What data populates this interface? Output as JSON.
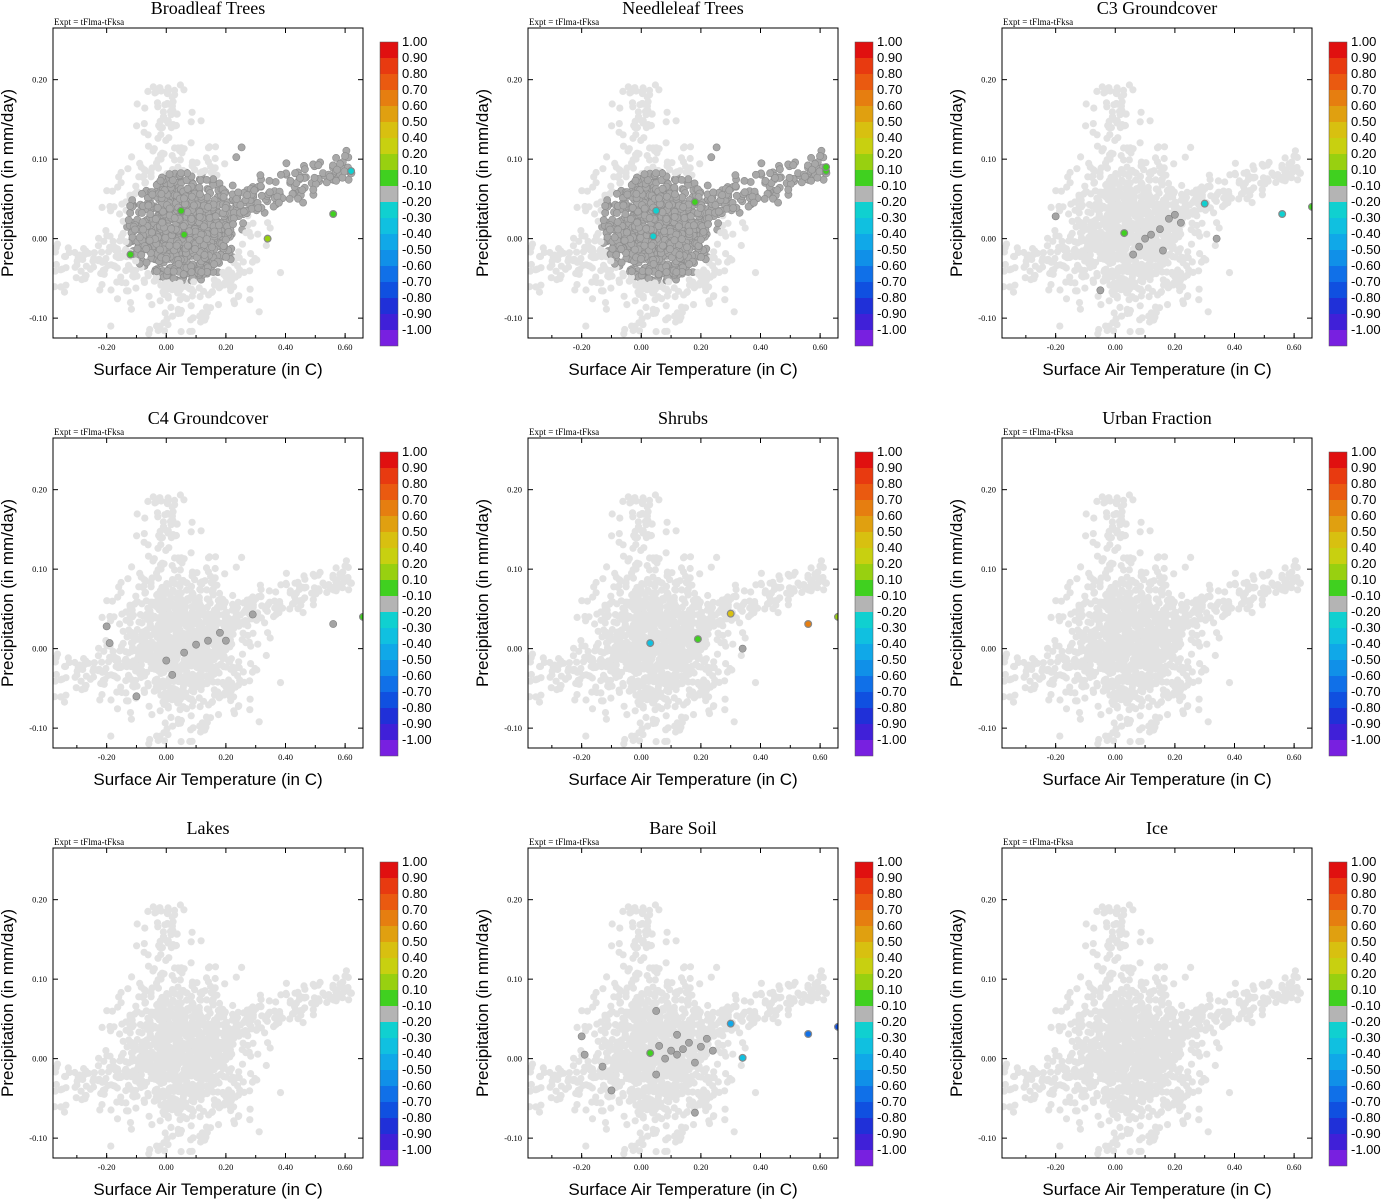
{
  "figure": {
    "expt_label": "Expt = tFlma-tFksa",
    "xlabel": "Surface Air Temperature (in C)",
    "ylabel": "Precipitation (in mm/day)",
    "xticks": [
      "-0.20",
      "0.00",
      "0.20",
      "0.40",
      "0.60"
    ],
    "yticks": [
      "-0.10",
      "0.00",
      "0.10",
      "0.20"
    ],
    "colorbar_labels": [
      "1.00",
      "0.90",
      "0.80",
      "0.70",
      "0.60",
      "0.50",
      "0.40",
      "0.20",
      "0.10",
      "-0.10",
      "-0.20",
      "-0.30",
      "-0.40",
      "-0.50",
      "-0.60",
      "-0.70",
      "-0.80",
      "-0.90",
      "-1.00"
    ],
    "colorbar_colors": [
      "#e01010",
      "#e83a10",
      "#ea5a10",
      "#e67e10",
      "#e0a010",
      "#d8c010",
      "#c8d010",
      "#98d010",
      "#40d020",
      "#b4b4b4",
      "#10d0d0",
      "#10c0e0",
      "#10a8e8",
      "#1090e8",
      "#1070e8",
      "#1050e0",
      "#2030d8",
      "#4020d8",
      "#7820e0"
    ]
  },
  "chart_data": [
    {
      "type": "scatter",
      "title": "Broadleaf Trees",
      "xlabel": "Surface Air Temperature (in C)",
      "ylabel": "Precipitation (in mm/day)",
      "xlim": [
        -0.38,
        0.66
      ],
      "ylim": [
        -0.125,
        0.265
      ],
      "active_gray_extent": "most points",
      "colored_points": [
        {
          "x": 0.05,
          "y": 0.035,
          "corr": 0.1
        },
        {
          "x": 0.06,
          "y": 0.005,
          "corr": 0.1
        },
        {
          "x": -0.12,
          "y": -0.02,
          "corr": 0.1
        },
        {
          "x": 0.34,
          "y": 0.0,
          "corr": 0.2
        },
        {
          "x": 0.56,
          "y": 0.031,
          "corr": 0.1
        },
        {
          "x": 0.62,
          "y": 0.085,
          "corr": -0.2
        }
      ]
    },
    {
      "type": "scatter",
      "title": "Needleleaf Trees",
      "xlabel": "Surface Air Temperature (in C)",
      "ylabel": "Precipitation (in mm/day)",
      "xlim": [
        -0.38,
        0.66
      ],
      "ylim": [
        -0.125,
        0.265
      ],
      "active_gray_extent": "most points",
      "colored_points": [
        {
          "x": 0.18,
          "y": 0.046,
          "corr": 0.1
        },
        {
          "x": 0.62,
          "y": 0.085,
          "corr": 0.1
        },
        {
          "x": 0.62,
          "y": 0.09,
          "corr": 0.1
        },
        {
          "x": 0.05,
          "y": 0.035,
          "corr": -0.2
        },
        {
          "x": 0.04,
          "y": 0.003,
          "corr": -0.2
        }
      ]
    },
    {
      "type": "scatter",
      "title": "C3 Groundcover",
      "xlabel": "Surface Air Temperature (in C)",
      "ylabel": "Precipitation (in mm/day)",
      "xlim": [
        -0.38,
        0.66
      ],
      "ylim": [
        -0.125,
        0.265
      ],
      "active_gray": [
        {
          "x": -0.2,
          "y": 0.028
        },
        {
          "x": 0.1,
          "y": 0.0
        },
        {
          "x": 0.15,
          "y": 0.012
        },
        {
          "x": 0.18,
          "y": 0.025
        },
        {
          "x": 0.2,
          "y": 0.03
        },
        {
          "x": 0.08,
          "y": -0.01
        },
        {
          "x": 0.12,
          "y": 0.005
        },
        {
          "x": 0.34,
          "y": 0.0
        },
        {
          "x": -0.05,
          "y": -0.065
        },
        {
          "x": 0.16,
          "y": -0.015
        },
        {
          "x": 0.22,
          "y": 0.02
        },
        {
          "x": 0.06,
          "y": -0.02
        }
      ],
      "colored_points": [
        {
          "x": 0.03,
          "y": 0.007,
          "corr": 0.1
        },
        {
          "x": 0.3,
          "y": 0.044,
          "corr": -0.2
        },
        {
          "x": 0.56,
          "y": 0.031,
          "corr": -0.2
        },
        {
          "x": 0.66,
          "y": 0.04,
          "corr": 0.1
        }
      ]
    },
    {
      "type": "scatter",
      "title": "C4 Groundcover",
      "xlabel": "Surface Air Temperature (in C)",
      "ylabel": "Precipitation (in mm/day)",
      "xlim": [
        -0.38,
        0.66
      ],
      "ylim": [
        -0.125,
        0.265
      ],
      "active_gray": [
        {
          "x": -0.2,
          "y": 0.028
        },
        {
          "x": -0.19,
          "y": 0.007
        },
        {
          "x": -0.1,
          "y": -0.06
        },
        {
          "x": 0.0,
          "y": -0.015
        },
        {
          "x": 0.02,
          "y": -0.033
        },
        {
          "x": 0.1,
          "y": 0.005
        },
        {
          "x": 0.14,
          "y": 0.01
        },
        {
          "x": 0.18,
          "y": 0.02
        },
        {
          "x": 0.2,
          "y": 0.01
        },
        {
          "x": 0.06,
          "y": -0.005
        },
        {
          "x": 0.29,
          "y": 0.043
        },
        {
          "x": 0.56,
          "y": 0.031
        }
      ],
      "colored_points": [
        {
          "x": 0.66,
          "y": 0.04,
          "corr": 0.1
        }
      ]
    },
    {
      "type": "scatter",
      "title": "Shrubs",
      "xlabel": "Surface Air Temperature (in C)",
      "ylabel": "Precipitation (in mm/day)",
      "xlim": [
        -0.38,
        0.66
      ],
      "ylim": [
        -0.125,
        0.265
      ],
      "active_gray": [
        {
          "x": 0.34,
          "y": 0.0
        }
      ],
      "colored_points": [
        {
          "x": 0.03,
          "y": 0.007,
          "corr": -0.3
        },
        {
          "x": 0.19,
          "y": 0.012,
          "corr": 0.1
        },
        {
          "x": 0.3,
          "y": 0.044,
          "corr": 0.5
        },
        {
          "x": 0.56,
          "y": 0.031,
          "corr": 0.7
        },
        {
          "x": 0.66,
          "y": 0.04,
          "corr": 0.2
        }
      ]
    },
    {
      "type": "scatter",
      "title": "Urban Fraction",
      "xlabel": "Surface Air Temperature (in C)",
      "ylabel": "Precipitation (in mm/day)",
      "xlim": [
        -0.38,
        0.66
      ],
      "ylim": [
        -0.125,
        0.265
      ],
      "active_gray": [],
      "colored_points": []
    },
    {
      "type": "scatter",
      "title": "Lakes",
      "xlabel": "Surface Air Temperature (in C)",
      "ylabel": "Precipitation (in mm/day)",
      "xlim": [
        -0.38,
        0.66
      ],
      "ylim": [
        -0.125,
        0.265
      ],
      "active_gray": [],
      "colored_points": []
    },
    {
      "type": "scatter",
      "title": "Bare Soil",
      "xlabel": "Surface Air Temperature (in C)",
      "ylabel": "Precipitation (in mm/day)",
      "xlim": [
        -0.38,
        0.66
      ],
      "ylim": [
        -0.125,
        0.265
      ],
      "active_gray": [
        {
          "x": -0.2,
          "y": 0.028
        },
        {
          "x": -0.19,
          "y": 0.005
        },
        {
          "x": -0.13,
          "y": -0.01
        },
        {
          "x": -0.1,
          "y": -0.04
        },
        {
          "x": 0.05,
          "y": -0.02
        },
        {
          "x": 0.06,
          "y": 0.016
        },
        {
          "x": 0.08,
          "y": 0.0
        },
        {
          "x": 0.1,
          "y": 0.01
        },
        {
          "x": 0.12,
          "y": 0.005
        },
        {
          "x": 0.14,
          "y": 0.012
        },
        {
          "x": 0.16,
          "y": 0.02
        },
        {
          "x": 0.18,
          "y": -0.005
        },
        {
          "x": 0.2,
          "y": 0.015
        },
        {
          "x": 0.22,
          "y": 0.025
        },
        {
          "x": 0.18,
          "y": -0.068
        },
        {
          "x": 0.05,
          "y": 0.06
        },
        {
          "x": 0.24,
          "y": 0.01
        },
        {
          "x": 0.12,
          "y": 0.03
        }
      ],
      "colored_points": [
        {
          "x": 0.03,
          "y": 0.007,
          "corr": 0.1
        },
        {
          "x": 0.3,
          "y": 0.044,
          "corr": -0.4
        },
        {
          "x": 0.34,
          "y": 0.001,
          "corr": -0.3
        },
        {
          "x": 0.56,
          "y": 0.031,
          "corr": -0.6
        },
        {
          "x": 0.66,
          "y": 0.04,
          "corr": -0.7
        }
      ]
    },
    {
      "type": "scatter",
      "title": "Ice",
      "xlabel": "Surface Air Temperature (in C)",
      "ylabel": "Precipitation (in mm/day)",
      "xlim": [
        -0.38,
        0.66
      ],
      "ylim": [
        -0.125,
        0.265
      ],
      "active_gray": [],
      "colored_points": []
    }
  ]
}
